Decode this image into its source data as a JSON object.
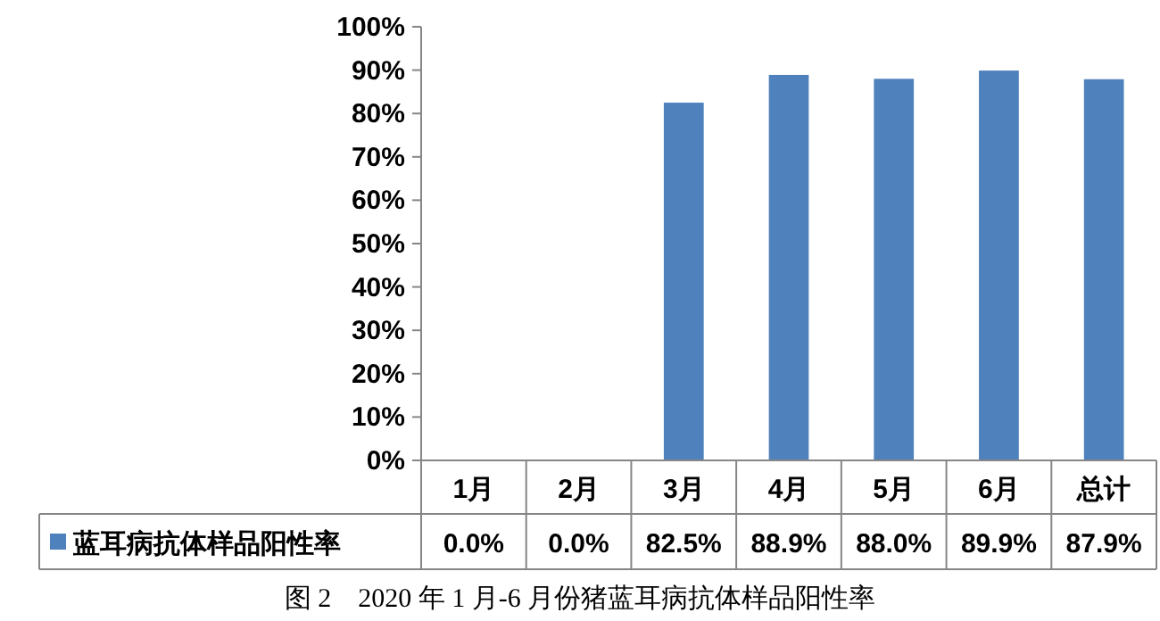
{
  "chart_data": {
    "type": "bar",
    "categories": [
      "1月",
      "2月",
      "3月",
      "4月",
      "5月",
      "6月",
      "总计"
    ],
    "series": [
      {
        "name": "蓝耳病抗体样品阳性率",
        "color": "#4f81bd",
        "values": [
          0.0,
          0.0,
          82.5,
          88.9,
          88.0,
          89.9,
          87.9
        ],
        "value_labels": [
          "0.0%",
          "0.0%",
          "82.5%",
          "88.9%",
          "88.0%",
          "89.9%",
          "87.9%"
        ]
      }
    ],
    "ylim": [
      0,
      100
    ],
    "yticks": [
      {
        "value": 0,
        "label": "0%"
      },
      {
        "value": 10,
        "label": "10%"
      },
      {
        "value": 20,
        "label": "20%"
      },
      {
        "value": 30,
        "label": "30%"
      },
      {
        "value": 40,
        "label": "40%"
      },
      {
        "value": 50,
        "label": "50%"
      },
      {
        "value": 60,
        "label": "60%"
      },
      {
        "value": 70,
        "label": "70%"
      },
      {
        "value": 80,
        "label": "80%"
      },
      {
        "value": 90,
        "label": "90%"
      },
      {
        "value": 100,
        "label": "100%"
      }
    ],
    "legend": "bottom",
    "annotations": [
      "图 2　2020 年 1 月-6 月份猪蓝耳病抗体样品阳性率"
    ]
  }
}
